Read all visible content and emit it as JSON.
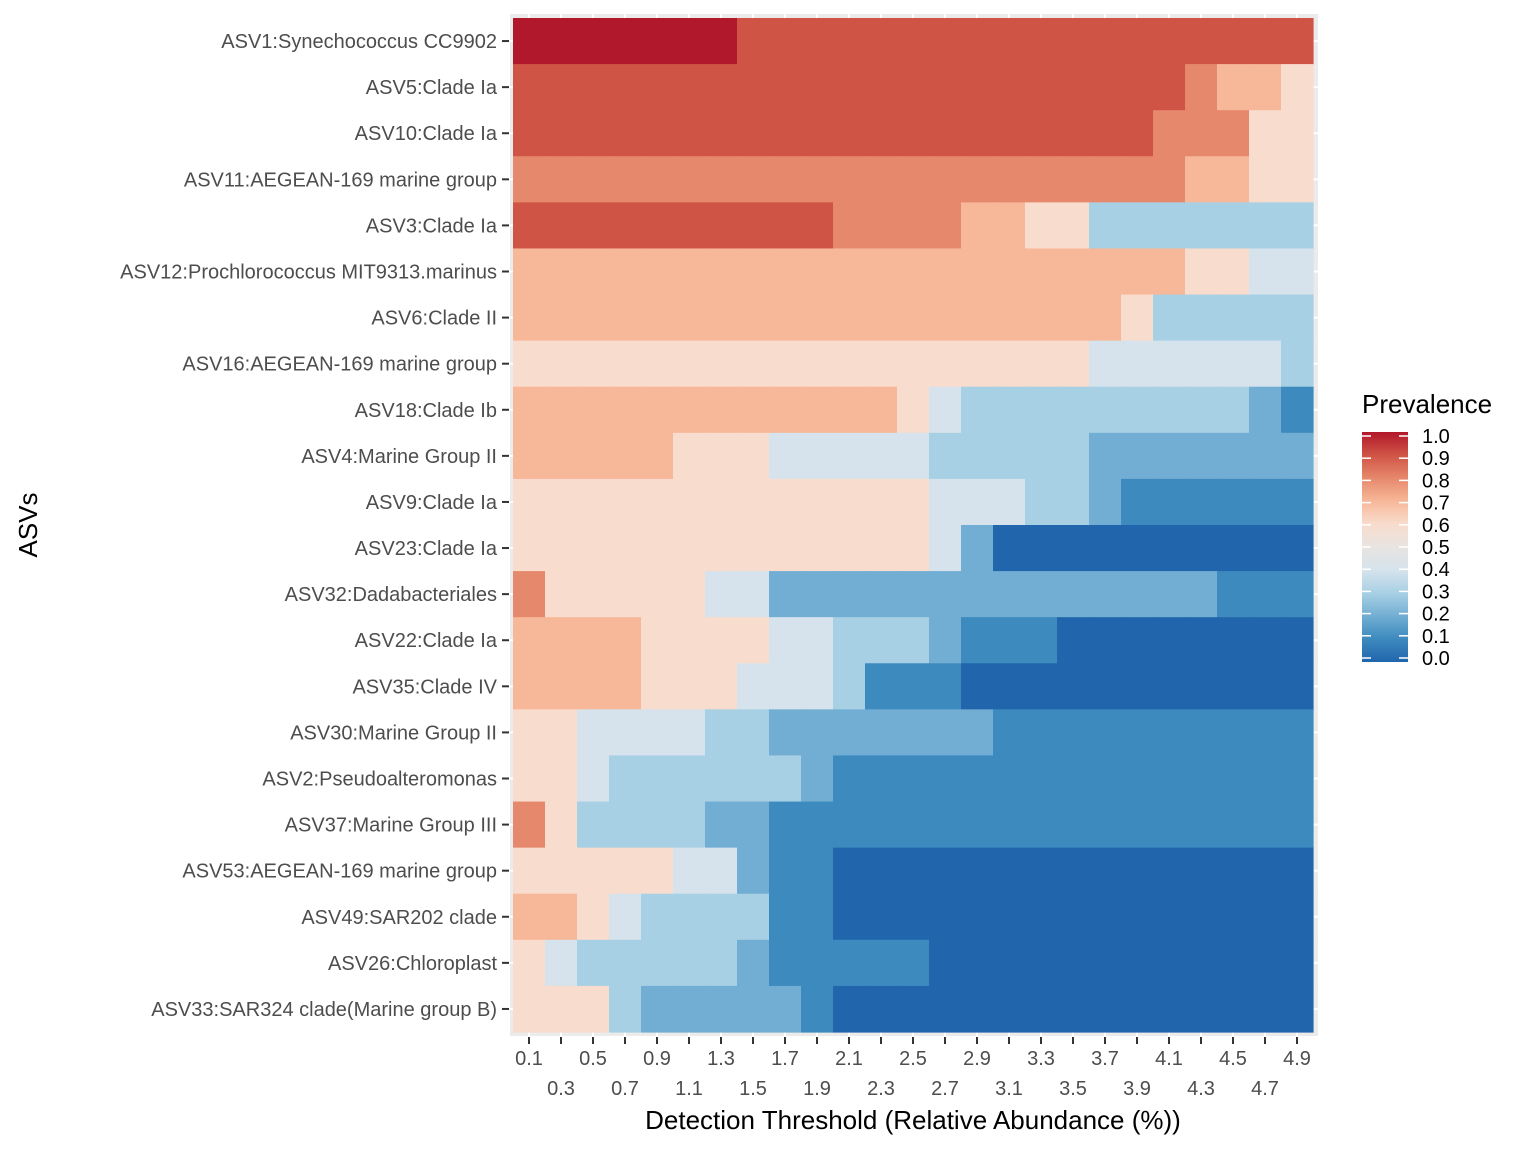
{
  "chart_data": {
    "type": "heatmap",
    "title": "",
    "xlabel": "Detection Threshold (Relative Abundance (%))",
    "ylabel": "ASVs",
    "x": [
      "0.1",
      "0.3",
      "0.5",
      "0.7",
      "0.9",
      "1.1",
      "1.3",
      "1.5",
      "1.7",
      "1.9",
      "2.1",
      "2.3",
      "2.5",
      "2.7",
      "2.9",
      "3.1",
      "3.3",
      "3.5",
      "3.7",
      "3.9",
      "4.1",
      "4.3",
      "4.5",
      "4.7",
      "4.9"
    ],
    "y": [
      "ASV1:Synechococcus CC9902",
      "ASV5:Clade Ia",
      "ASV10:Clade Ia",
      "ASV11:AEGEAN-169 marine group",
      "ASV3:Clade Ia",
      "ASV12:Prochlorococcus MIT9313.marinus",
      "ASV6:Clade II",
      "ASV16:AEGEAN-169 marine group",
      "ASV18:Clade Ib",
      "ASV4:Marine Group II",
      "ASV9:Clade Ia",
      "ASV23:Clade Ia",
      "ASV32:Dadabacteriales",
      "ASV22:Clade Ia",
      "ASV35:Clade IV",
      "ASV30:Marine Group II",
      "ASV2:Pseudoalteromonas",
      "ASV37:Marine Group III",
      "ASV53:AEGEAN-169 marine group",
      "ASV49:SAR202 clade",
      "ASV26:Chloroplast",
      "ASV33:SAR324 clade(Marine group B)"
    ],
    "values": [
      [
        1.0,
        1.0,
        1.0,
        1.0,
        1.0,
        1.0,
        1.0,
        0.9,
        0.9,
        0.9,
        0.9,
        0.9,
        0.9,
        0.9,
        0.9,
        0.9,
        0.9,
        0.9,
        0.9,
        0.9,
        0.9,
        0.9,
        0.9,
        0.9,
        0.9
      ],
      [
        0.9,
        0.9,
        0.9,
        0.9,
        0.9,
        0.9,
        0.9,
        0.9,
        0.9,
        0.9,
        0.9,
        0.9,
        0.9,
        0.9,
        0.9,
        0.9,
        0.9,
        0.9,
        0.9,
        0.9,
        0.9,
        0.8,
        0.7,
        0.7,
        0.6
      ],
      [
        0.9,
        0.9,
        0.9,
        0.9,
        0.9,
        0.9,
        0.9,
        0.9,
        0.9,
        0.9,
        0.9,
        0.9,
        0.9,
        0.9,
        0.9,
        0.9,
        0.9,
        0.9,
        0.9,
        0.9,
        0.8,
        0.8,
        0.8,
        0.6,
        0.6
      ],
      [
        0.8,
        0.8,
        0.8,
        0.8,
        0.8,
        0.8,
        0.8,
        0.8,
        0.8,
        0.8,
        0.8,
        0.8,
        0.8,
        0.8,
        0.8,
        0.8,
        0.8,
        0.8,
        0.8,
        0.8,
        0.8,
        0.7,
        0.7,
        0.6,
        0.6
      ],
      [
        0.9,
        0.9,
        0.9,
        0.9,
        0.9,
        0.9,
        0.9,
        0.9,
        0.9,
        0.9,
        0.8,
        0.8,
        0.8,
        0.8,
        0.7,
        0.7,
        0.6,
        0.6,
        0.3,
        0.3,
        0.3,
        0.3,
        0.3,
        0.3,
        0.3
      ],
      [
        0.7,
        0.7,
        0.7,
        0.7,
        0.7,
        0.7,
        0.7,
        0.7,
        0.7,
        0.7,
        0.7,
        0.7,
        0.7,
        0.7,
        0.7,
        0.7,
        0.7,
        0.7,
        0.7,
        0.7,
        0.7,
        0.6,
        0.6,
        0.4,
        0.4
      ],
      [
        0.7,
        0.7,
        0.7,
        0.7,
        0.7,
        0.7,
        0.7,
        0.7,
        0.7,
        0.7,
        0.7,
        0.7,
        0.7,
        0.7,
        0.7,
        0.7,
        0.7,
        0.7,
        0.7,
        0.6,
        0.3,
        0.3,
        0.3,
        0.3,
        0.3
      ],
      [
        0.6,
        0.6,
        0.6,
        0.6,
        0.6,
        0.6,
        0.6,
        0.6,
        0.6,
        0.6,
        0.6,
        0.6,
        0.6,
        0.6,
        0.6,
        0.6,
        0.6,
        0.6,
        0.4,
        0.4,
        0.4,
        0.4,
        0.4,
        0.4,
        0.3
      ],
      [
        0.7,
        0.7,
        0.7,
        0.7,
        0.7,
        0.7,
        0.7,
        0.7,
        0.7,
        0.7,
        0.7,
        0.7,
        0.6,
        0.4,
        0.3,
        0.3,
        0.3,
        0.3,
        0.3,
        0.3,
        0.3,
        0.3,
        0.3,
        0.2,
        0.1
      ],
      [
        0.7,
        0.7,
        0.7,
        0.7,
        0.7,
        0.6,
        0.6,
        0.6,
        0.4,
        0.4,
        0.4,
        0.4,
        0.4,
        0.3,
        0.3,
        0.3,
        0.3,
        0.3,
        0.2,
        0.2,
        0.2,
        0.2,
        0.2,
        0.2,
        0.2
      ],
      [
        0.6,
        0.6,
        0.6,
        0.6,
        0.6,
        0.6,
        0.6,
        0.6,
        0.6,
        0.6,
        0.6,
        0.6,
        0.6,
        0.4,
        0.4,
        0.4,
        0.3,
        0.3,
        0.2,
        0.1,
        0.1,
        0.1,
        0.1,
        0.1,
        0.1
      ],
      [
        0.6,
        0.6,
        0.6,
        0.6,
        0.6,
        0.6,
        0.6,
        0.6,
        0.6,
        0.6,
        0.6,
        0.6,
        0.6,
        0.4,
        0.2,
        0.0,
        0.0,
        0.0,
        0.0,
        0.0,
        0.0,
        0.0,
        0.0,
        0.0,
        0.0
      ],
      [
        0.8,
        0.6,
        0.6,
        0.6,
        0.6,
        0.6,
        0.4,
        0.4,
        0.2,
        0.2,
        0.2,
        0.2,
        0.2,
        0.2,
        0.2,
        0.2,
        0.2,
        0.2,
        0.2,
        0.2,
        0.2,
        0.2,
        0.1,
        0.1,
        0.1
      ],
      [
        0.7,
        0.7,
        0.7,
        0.7,
        0.6,
        0.6,
        0.6,
        0.6,
        0.4,
        0.4,
        0.3,
        0.3,
        0.3,
        0.2,
        0.1,
        0.1,
        0.1,
        0.0,
        0.0,
        0.0,
        0.0,
        0.0,
        0.0,
        0.0,
        0.0
      ],
      [
        0.7,
        0.7,
        0.7,
        0.7,
        0.6,
        0.6,
        0.6,
        0.4,
        0.4,
        0.4,
        0.3,
        0.1,
        0.1,
        0.1,
        0.0,
        0.0,
        0.0,
        0.0,
        0.0,
        0.0,
        0.0,
        0.0,
        0.0,
        0.0,
        0.0
      ],
      [
        0.6,
        0.6,
        0.4,
        0.4,
        0.4,
        0.4,
        0.3,
        0.3,
        0.2,
        0.2,
        0.2,
        0.2,
        0.2,
        0.2,
        0.2,
        0.1,
        0.1,
        0.1,
        0.1,
        0.1,
        0.1,
        0.1,
        0.1,
        0.1,
        0.1
      ],
      [
        0.6,
        0.6,
        0.4,
        0.3,
        0.3,
        0.3,
        0.3,
        0.3,
        0.3,
        0.2,
        0.1,
        0.1,
        0.1,
        0.1,
        0.1,
        0.1,
        0.1,
        0.1,
        0.1,
        0.1,
        0.1,
        0.1,
        0.1,
        0.1,
        0.1
      ],
      [
        0.8,
        0.6,
        0.3,
        0.3,
        0.3,
        0.3,
        0.2,
        0.2,
        0.1,
        0.1,
        0.1,
        0.1,
        0.1,
        0.1,
        0.1,
        0.1,
        0.1,
        0.1,
        0.1,
        0.1,
        0.1,
        0.1,
        0.1,
        0.1,
        0.1
      ],
      [
        0.6,
        0.6,
        0.6,
        0.6,
        0.6,
        0.4,
        0.4,
        0.2,
        0.1,
        0.1,
        0.0,
        0.0,
        0.0,
        0.0,
        0.0,
        0.0,
        0.0,
        0.0,
        0.0,
        0.0,
        0.0,
        0.0,
        0.0,
        0.0,
        0.0
      ],
      [
        0.7,
        0.7,
        0.6,
        0.4,
        0.3,
        0.3,
        0.3,
        0.3,
        0.1,
        0.1,
        0.0,
        0.0,
        0.0,
        0.0,
        0.0,
        0.0,
        0.0,
        0.0,
        0.0,
        0.0,
        0.0,
        0.0,
        0.0,
        0.0,
        0.0
      ],
      [
        0.6,
        0.4,
        0.3,
        0.3,
        0.3,
        0.3,
        0.3,
        0.2,
        0.1,
        0.1,
        0.1,
        0.1,
        0.1,
        0.0,
        0.0,
        0.0,
        0.0,
        0.0,
        0.0,
        0.0,
        0.0,
        0.0,
        0.0,
        0.0,
        0.0
      ],
      [
        0.6,
        0.6,
        0.6,
        0.3,
        0.2,
        0.2,
        0.2,
        0.2,
        0.2,
        0.1,
        0.0,
        0.0,
        0.0,
        0.0,
        0.0,
        0.0,
        0.0,
        0.0,
        0.0,
        0.0,
        0.0,
        0.0,
        0.0,
        0.0,
        0.0
      ]
    ],
    "legend": {
      "title": "Prevalence",
      "position": "right",
      "ticks": [
        "1.0",
        "0.9",
        "0.8",
        "0.7",
        "0.6",
        "0.5",
        "0.4",
        "0.3",
        "0.2",
        "0.1",
        "0.0"
      ],
      "range": [
        0,
        1
      ]
    },
    "color_scale": [
      {
        "value": 0.0,
        "color": "#2166AC"
      },
      {
        "value": 0.1,
        "color": "#3D8ABF"
      },
      {
        "value": 0.2,
        "color": "#72AED3"
      },
      {
        "value": 0.3,
        "color": "#A8D0E4"
      },
      {
        "value": 0.4,
        "color": "#D6E3EC"
      },
      {
        "value": 0.5,
        "color": "#E8E4E1"
      },
      {
        "value": 0.6,
        "color": "#F8DCCD"
      },
      {
        "value": 0.7,
        "color": "#F7B799"
      },
      {
        "value": 0.8,
        "color": "#E6886C"
      },
      {
        "value": 0.9,
        "color": "#CF5446"
      },
      {
        "value": 1.0,
        "color": "#B2182B"
      }
    ],
    "panel_background": "#EBEBEB",
    "grid": true
  }
}
